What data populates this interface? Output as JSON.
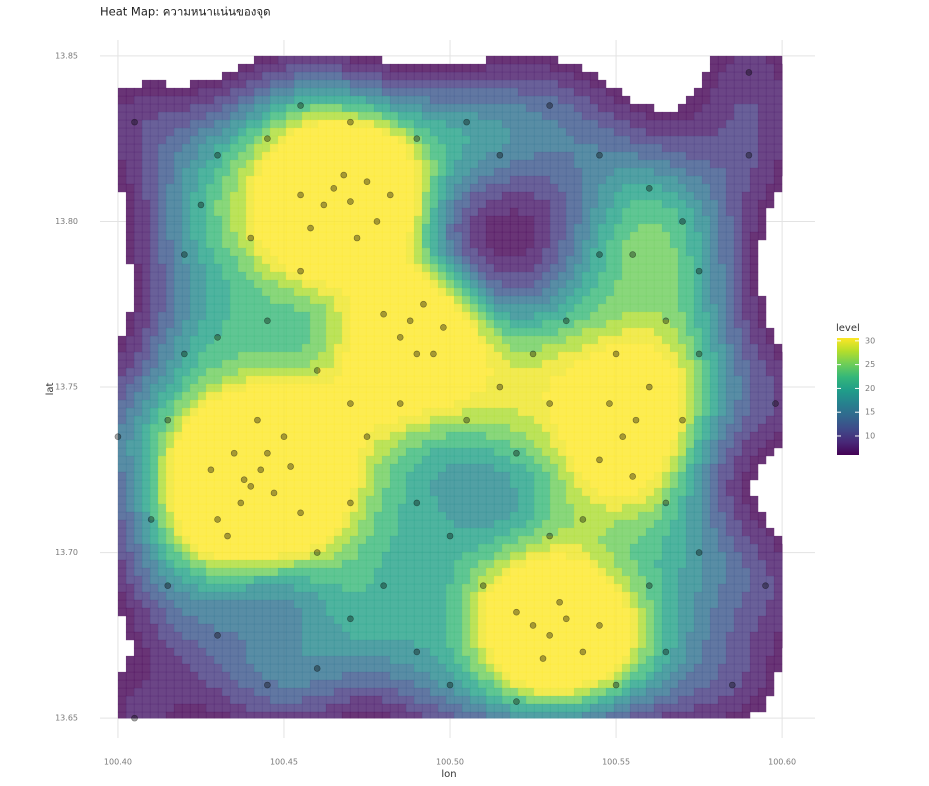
{
  "chart_data": {
    "type": "density2d",
    "title": "Heat Map: ความหนาแน่นของจุด",
    "x_label": "lon",
    "y_label": "lat",
    "xlim": [
      100.3946,
      100.6099
    ],
    "ylim": [
      13.644,
      13.8548
    ],
    "xticks": [
      {
        "value": 100.4,
        "label": "100.40"
      },
      100.45,
      {
        "value": 100.5,
        "label": "100.50"
      },
      100.55,
      {
        "value": 100.6,
        "label": "100.60"
      }
    ],
    "yticks": [
      13.65,
      {
        "value": 13.7,
        "label": "13.70"
      },
      13.75,
      {
        "value": 13.8,
        "label": "13.80"
      },
      13.85
    ],
    "grid": true,
    "bandwidth": [
      0.014,
      0.014
    ],
    "legend_title": "level",
    "colorlim": [
      6,
      30.6
    ],
    "colorticks": [
      10,
      15,
      20,
      25,
      30
    ],
    "colors": [
      "#440154",
      "#482878",
      "#3e4a89",
      "#31688e",
      "#26828e",
      "#1f9e89",
      "#35b779",
      "#6ece58",
      "#b5de2b",
      "#fde725"
    ],
    "point_color": "#000000",
    "x": [
      100.44,
      100.438,
      100.443,
      100.435,
      100.447,
      100.43,
      100.45,
      100.428,
      100.442,
      100.455,
      100.433,
      100.445,
      100.437,
      100.452,
      100.47,
      100.462,
      100.475,
      100.468,
      100.478,
      100.458,
      100.472,
      100.482,
      100.465,
      100.455,
      100.488,
      100.495,
      100.485,
      100.492,
      100.498,
      100.48,
      100.49,
      100.525,
      100.53,
      100.535,
      100.52,
      100.54,
      100.528,
      100.533,
      100.545,
      100.552,
      100.548,
      100.556,
      100.545,
      100.56,
      100.55,
      100.555,
      100.42,
      100.425,
      100.43,
      100.445,
      100.455,
      100.47,
      100.49,
      100.505,
      100.515,
      100.53,
      100.545,
      100.56,
      100.57,
      100.575,
      100.565,
      100.575,
      100.57,
      100.565,
      100.575,
      100.56,
      100.565,
      100.55,
      100.52,
      100.5,
      100.49,
      100.48,
      100.47,
      100.46,
      100.445,
      100.43,
      100.415,
      100.41,
      100.415,
      100.42,
      100.43,
      100.445,
      100.455,
      100.44,
      100.46,
      100.47,
      100.475,
      100.485,
      100.505,
      100.515,
      100.525,
      100.535,
      100.545,
      100.555,
      100.53,
      100.52,
      100.54,
      100.53,
      100.5,
      100.49,
      100.51,
      100.46,
      100.47,
      100.405,
      100.4,
      100.598,
      100.595,
      100.59,
      100.405,
      100.585,
      100.59
    ],
    "y": [
      13.72,
      13.722,
      13.725,
      13.73,
      13.718,
      13.71,
      13.735,
      13.725,
      13.74,
      13.712,
      13.705,
      13.73,
      13.715,
      13.726,
      13.806,
      13.805,
      13.812,
      13.814,
      13.8,
      13.798,
      13.795,
      13.808,
      13.81,
      13.808,
      13.77,
      13.76,
      13.765,
      13.775,
      13.768,
      13.772,
      13.76,
      13.678,
      13.675,
      13.68,
      13.682,
      13.67,
      13.668,
      13.685,
      13.678,
      13.735,
      13.745,
      13.74,
      13.728,
      13.75,
      13.76,
      13.723,
      13.79,
      13.805,
      13.82,
      13.825,
      13.835,
      13.83,
      13.825,
      13.83,
      13.82,
      13.835,
      13.82,
      13.81,
      13.8,
      13.785,
      13.77,
      13.76,
      13.74,
      13.715,
      13.7,
      13.69,
      13.67,
      13.66,
      13.655,
      13.66,
      13.67,
      13.69,
      13.68,
      13.665,
      13.66,
      13.675,
      13.69,
      13.71,
      13.74,
      13.76,
      13.765,
      13.77,
      13.785,
      13.795,
      13.755,
      13.745,
      13.735,
      13.745,
      13.74,
      13.75,
      13.76,
      13.77,
      13.79,
      13.79,
      13.745,
      13.73,
      13.71,
      13.705,
      13.705,
      13.715,
      13.69,
      13.7,
      13.715,
      13.65,
      13.735,
      13.745,
      13.69,
      13.82,
      13.83,
      13.66,
      13.845
    ]
  }
}
